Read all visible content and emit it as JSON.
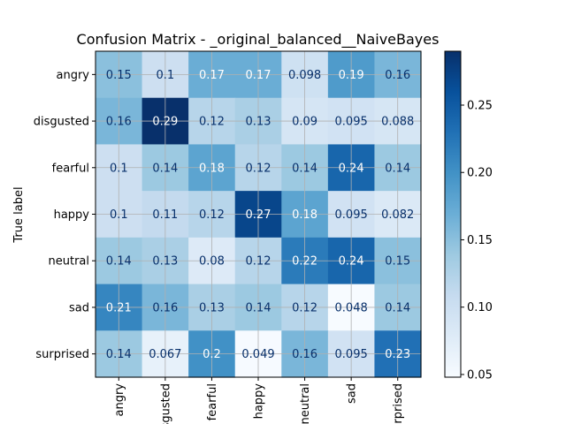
{
  "chart_data": {
    "type": "heatmap",
    "title": "Confusion Matrix - _original_balanced__NaiveBayes",
    "ylabel": "True label",
    "xlabel": "",
    "row_labels": [
      "angry",
      "disgusted",
      "fearful",
      "happy",
      "neutral",
      "sad",
      "surprised"
    ],
    "col_labels": [
      "angry",
      "disgusted",
      "fearful",
      "happy",
      "neutral",
      "sad",
      "surprised"
    ],
    "values": [
      [
        0.15,
        0.1,
        0.17,
        0.17,
        0.098,
        0.19,
        0.16
      ],
      [
        0.16,
        0.29,
        0.12,
        0.13,
        0.09,
        0.095,
        0.088
      ],
      [
        0.1,
        0.14,
        0.18,
        0.12,
        0.14,
        0.24,
        0.14
      ],
      [
        0.1,
        0.11,
        0.12,
        0.27,
        0.18,
        0.095,
        0.082
      ],
      [
        0.14,
        0.13,
        0.08,
        0.12,
        0.22,
        0.24,
        0.15
      ],
      [
        0.21,
        0.16,
        0.13,
        0.14,
        0.12,
        0.048,
        0.14
      ],
      [
        0.14,
        0.067,
        0.2,
        0.049,
        0.16,
        0.095,
        0.23
      ]
    ],
    "value_labels": [
      [
        "0.15",
        "0.1",
        "0.17",
        "0.17",
        "0.098",
        "0.19",
        "0.16"
      ],
      [
        "0.16",
        "0.29",
        "0.12",
        "0.13",
        "0.09",
        "0.095",
        "0.088"
      ],
      [
        "0.1",
        "0.14",
        "0.18",
        "0.12",
        "0.14",
        "0.24",
        "0.14"
      ],
      [
        "0.1",
        "0.11",
        "0.12",
        "0.27",
        "0.18",
        "0.095",
        "0.082"
      ],
      [
        "0.14",
        "0.13",
        "0.08",
        "0.12",
        "0.22",
        "0.24",
        "0.15"
      ],
      [
        "0.21",
        "0.16",
        "0.13",
        "0.14",
        "0.12",
        "0.048",
        "0.14"
      ],
      [
        "0.14",
        "0.067",
        "0.2",
        "0.049",
        "0.16",
        "0.095",
        "0.23"
      ]
    ],
    "colormap": "Blues",
    "color_range": [
      0.048,
      0.29
    ],
    "colorbar_ticks": [
      0.05,
      0.1,
      0.15,
      0.2,
      0.25
    ],
    "colorbar_tick_labels": [
      "0.05",
      "0.10",
      "0.15",
      "0.20",
      "0.25"
    ],
    "grid": true,
    "text_color_dark": "#08306b",
    "text_color_light": "#ffffff"
  }
}
